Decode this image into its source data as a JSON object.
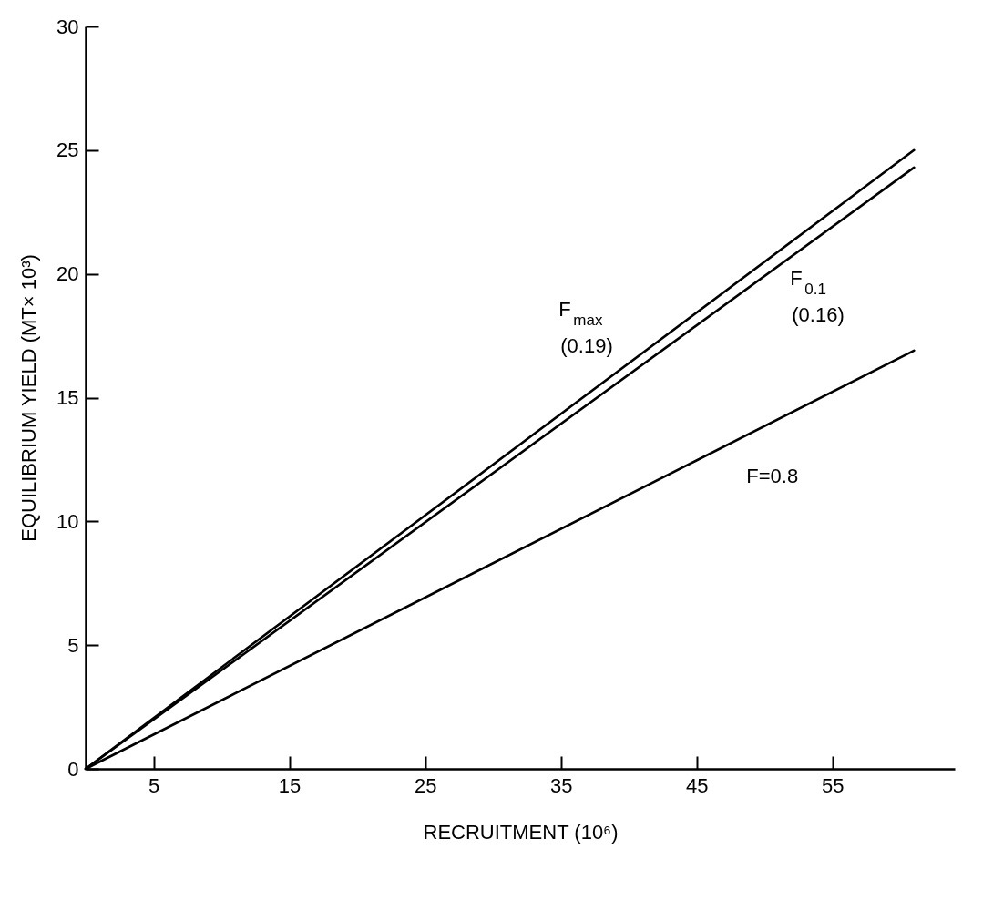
{
  "chart_data": {
    "type": "line",
    "xlabel": "RECRUITMENT (10⁶)",
    "ylabel": "EQUILIBRIUM YIELD (MT× 10³)",
    "x": [
      0,
      61
    ],
    "series": [
      {
        "name": "F$_{max}$ (0.19)",
        "color": "#000000",
        "values": [
          0,
          25.0
        ]
      },
      {
        "name": "F$_{0.1}$ (0.16)",
        "color": "#000000",
        "values": [
          0,
          24.3
        ]
      },
      {
        "name": "F=0.8",
        "color": "#000000",
        "values": [
          0,
          16.9
        ]
      }
    ],
    "xlim": [
      0,
      64
    ],
    "xticks": [
      5,
      15,
      25,
      35,
      45,
      55
    ],
    "ylim": [
      0,
      30
    ],
    "yticks": [
      0,
      5,
      10,
      15,
      20,
      25,
      30
    ],
    "grid": false,
    "legend": false,
    "marker": "none",
    "line_style": "solid"
  }
}
